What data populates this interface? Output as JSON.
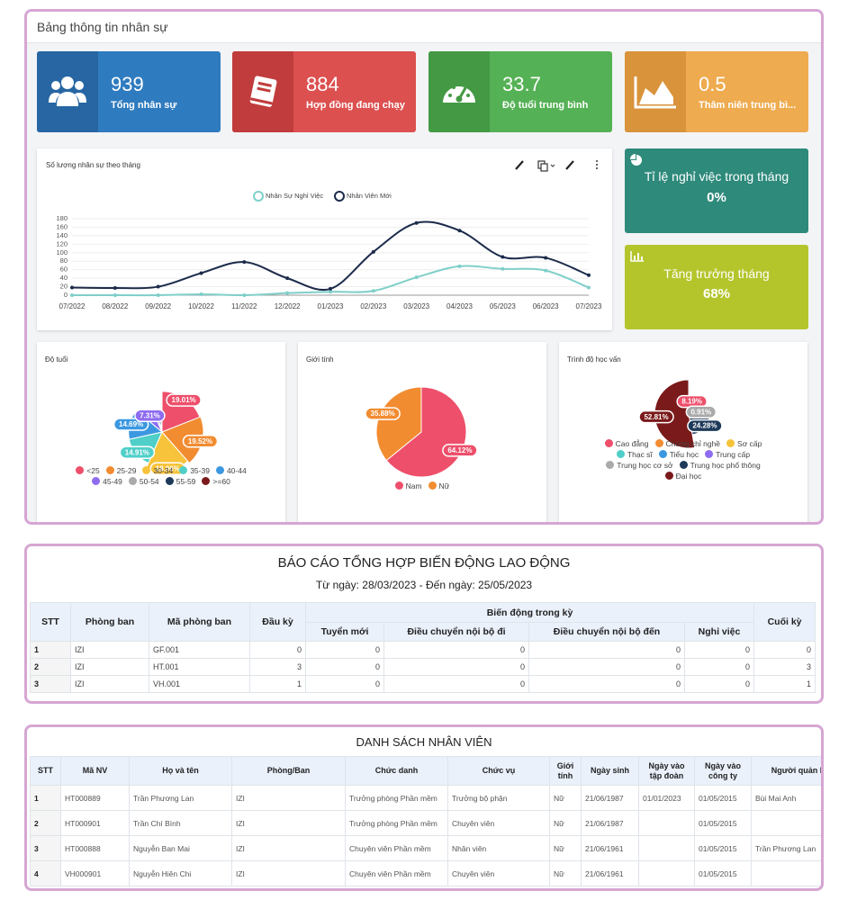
{
  "header": {
    "title": "Bảng thông tin nhân sự"
  },
  "kpis": [
    {
      "value": 939,
      "label": "Tổng nhân sự",
      "color": "#2f7bbf",
      "icon_color": "#2766a3"
    },
    {
      "value": 884,
      "label": "Hợp đồng đang chạy",
      "color": "#dc5050",
      "icon_color": "#c13c3c"
    },
    {
      "value": 33.7,
      "label": "Độ tuổi trung bình",
      "color": "#55b155",
      "icon_color": "#449a44"
    },
    {
      "value": 0.5,
      "label": "Thâm niên trung bì...",
      "color": "#eeab4f",
      "icon_color": "#d9933b"
    }
  ],
  "side_cards": [
    {
      "title": "Tỉ lệ nghỉ việc trong tháng",
      "value": "0%",
      "color": "#2e8a7b"
    },
    {
      "title": "Tăng trưởng tháng",
      "value": "68%",
      "color": "#b4c52c"
    }
  ],
  "chart_data": [
    {
      "type": "line",
      "title": "Số lượng nhân sự theo tháng",
      "categories": [
        "07/2022",
        "08/2022",
        "09/2022",
        "10/2022",
        "11/2022",
        "12/2022",
        "01/2023",
        "02/2023",
        "03/2023",
        "04/2023",
        "05/2023",
        "06/2023",
        "07/2023"
      ],
      "series": [
        {
          "name": "Nhân Sự Nghỉ Việc",
          "color": "#7fcfc9",
          "values": [
            0,
            0,
            0,
            2,
            0,
            5,
            8,
            10,
            42,
            68,
            62,
            58,
            18
          ]
        },
        {
          "name": "Nhân Viên Mới",
          "color": "#1c2b4b",
          "values": [
            18,
            17,
            20,
            52,
            78,
            40,
            15,
            102,
            170,
            152,
            90,
            88,
            47
          ]
        }
      ],
      "ylim": [
        0,
        180
      ],
      "yticks": [
        0,
        20,
        40,
        60,
        80,
        100,
        120,
        140,
        160,
        180
      ],
      "grid": true,
      "smooth": true
    },
    {
      "type": "pie",
      "title": "Độ tuổi",
      "rose": true,
      "categories": [
        "<25",
        "25-29",
        "30-34",
        "35-39",
        "40-44",
        "45-49",
        "50-54",
        "55-59",
        ">=60"
      ],
      "values": [
        19.01,
        19.52,
        18.06,
        14.91,
        14.69,
        7.31,
        2.5,
        2.3,
        1.7
      ],
      "value_labels": [
        "19.01%",
        "19.52%",
        "18.06%",
        "14.91%",
        "14.69%",
        "7.31%",
        null,
        null,
        null
      ],
      "colors": [
        "#ee4f6b",
        "#f28c31",
        "#f7c33b",
        "#4fcfc8",
        "#3b98e0",
        "#8e6cf0",
        "#aaaaaa",
        "#1e3a5a",
        "#7a1a1a"
      ]
    },
    {
      "type": "pie",
      "title": "Giới tính",
      "rose": false,
      "categories": [
        "Nam",
        "Nữ"
      ],
      "values": [
        64.12,
        35.88
      ],
      "value_labels": [
        "64.12%",
        "35.88%"
      ],
      "colors": [
        "#ee4f6b",
        "#f28c31"
      ]
    },
    {
      "type": "pie",
      "title": "Trình độ học vấn",
      "rose": true,
      "categories": [
        "Cao đẳng",
        "Chứng chỉ nghề",
        "Sơ cấp",
        "Thạc sĩ",
        "Tiểu học",
        "Trung cấp",
        "Trung học cơ sở",
        "Trung học phổ thông",
        "Đại học"
      ],
      "values": [
        8.19,
        3.5,
        2.0,
        4.0,
        1.5,
        2.81,
        0.91,
        24.28,
        52.81
      ],
      "value_labels": [
        "8.19%",
        null,
        null,
        null,
        null,
        null,
        "0.91%",
        "24.28%",
        "52.81%"
      ],
      "colors": [
        "#ee4f6b",
        "#f28c31",
        "#f7c33b",
        "#4fcfc8",
        "#3b98e0",
        "#8e6cf0",
        "#aaaaaa",
        "#1e3a5a",
        "#7a1a1a"
      ]
    }
  ],
  "report": {
    "title": "BÁO CÁO TỔNG HỢP BIẾN ĐỘNG LAO ĐỘNG",
    "subtitle": "Từ ngày: 28/03/2023 - Đến ngày: 25/05/2023",
    "group_header": "Biến động trong kỳ",
    "headers": [
      "STT",
      "Phòng ban",
      "Mã phòng ban",
      "Đầu kỳ",
      "Tuyển mới",
      "Điều chuyển nội bộ đi",
      "Điều chuyển nội bộ đến",
      "Nghỉ việc",
      "Cuối kỳ"
    ],
    "rows": [
      [
        1,
        "IZI",
        "GF.001",
        0,
        0,
        0,
        0,
        0,
        0
      ],
      [
        2,
        "IZI",
        "HT.001",
        3,
        0,
        0,
        0,
        0,
        3
      ],
      [
        3,
        "IZI",
        "VH.001",
        1,
        0,
        0,
        0,
        0,
        1
      ]
    ]
  },
  "employees": {
    "title": "DANH SÁCH NHÂN VIÊN",
    "headers": [
      "STT",
      "Mã NV",
      "Họ và tên",
      "Phòng/Ban",
      "Chức danh",
      "Chức vụ",
      "Giới tính",
      "Ngày sinh",
      "Ngày vào tập đoàn",
      "Ngày vào công ty",
      "Người quản lý"
    ],
    "rows": [
      [
        1,
        "HT000889",
        "Trần Phương Lan",
        "IZI",
        "Trưởng phòng Phần mềm",
        "Trưởng bộ phận",
        "Nữ",
        "21/06/1987",
        "01/01/2023",
        "01/05/2015",
        "Bùi Mai Anh"
      ],
      [
        2,
        "HT000901",
        "Trần Chí Bình",
        "IZI",
        "Trưởng phòng Phần mềm",
        "Chuyên viên",
        "Nữ",
        "21/06/1987",
        null,
        "01/05/2015",
        null
      ],
      [
        3,
        "HT000888",
        "Nguyễn Ban Mai",
        "IZI",
        "Chuyên viên Phần mềm",
        "Nhân viên",
        "Nữ",
        "21/06/1961",
        null,
        "01/05/2015",
        "Trần Phương Lan"
      ],
      [
        4,
        "VH000901",
        "Nguyễn Hiên Chi",
        "IZI",
        "Chuyên viên Phần mềm",
        "Chuyên viên",
        "Nữ",
        "21/06/1961",
        null,
        "01/05/2015",
        null
      ]
    ]
  }
}
